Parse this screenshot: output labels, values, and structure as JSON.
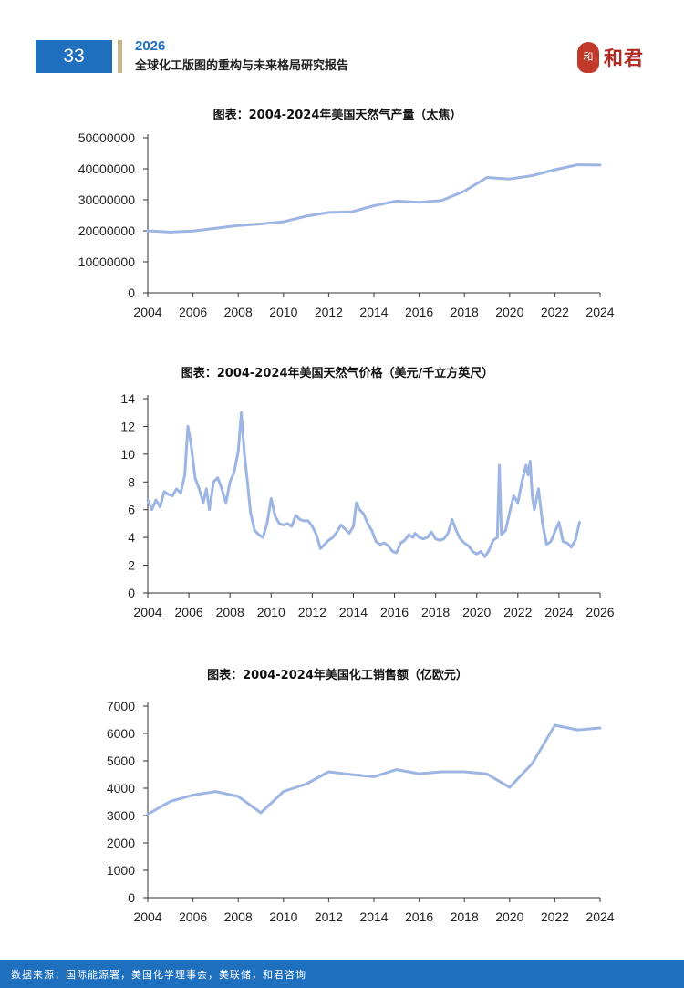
{
  "header": {
    "page_number": "33",
    "year": "2026",
    "title": "全球化工版图的重构与未来格局研究报告",
    "logo_text": "和君",
    "logo_seal": "和"
  },
  "chart_data": [
    {
      "type": "line",
      "title": "图表：2004-2024年美国天然气产量（太焦）",
      "xlabel": "",
      "ylabel": "",
      "xlim": [
        2004,
        2024
      ],
      "ylim": [
        0,
        50000000
      ],
      "x_ticks": [
        "2004",
        "2006",
        "2008",
        "2010",
        "2012",
        "2014",
        "2016",
        "2018",
        "2020",
        "2022",
        "2024"
      ],
      "y_ticks": [
        "0",
        "10000000",
        "20000000",
        "30000000",
        "40000000",
        "50000000"
      ],
      "series": [
        {
          "name": "天然气产量",
          "x": [
            2004,
            2005,
            2006,
            2007,
            2008,
            2009,
            2010,
            2011,
            2012,
            2013,
            2014,
            2015,
            2016,
            2017,
            2018,
            2019,
            2020,
            2021,
            2022,
            2023,
            2024
          ],
          "values": [
            20000000,
            19600000,
            19900000,
            20800000,
            21700000,
            22200000,
            22900000,
            24700000,
            25900000,
            26100000,
            28100000,
            29600000,
            29200000,
            29800000,
            32800000,
            37200000,
            36700000,
            37800000,
            39700000,
            41300000,
            41200000
          ]
        }
      ]
    },
    {
      "type": "line",
      "title": "图表：2004-2024年美国天然气价格（美元/千立方英尺）",
      "xlabel": "",
      "ylabel": "",
      "xlim": [
        2004,
        2026
      ],
      "ylim": [
        0,
        14
      ],
      "x_ticks": [
        "2004",
        "2006",
        "2008",
        "2010",
        "2012",
        "2014",
        "2016",
        "2018",
        "2020",
        "2022",
        "2024",
        "2026"
      ],
      "y_ticks": [
        "0",
        "2",
        "4",
        "6",
        "8",
        "10",
        "12",
        "14"
      ],
      "series": [
        {
          "name": "天然气价格",
          "x": [
            2004.0,
            2004.2,
            2004.4,
            2004.6,
            2004.8,
            2005.0,
            2005.2,
            2005.4,
            2005.6,
            2005.8,
            2005.95,
            2006.1,
            2006.3,
            2006.5,
            2006.7,
            2006.85,
            2007.0,
            2007.2,
            2007.4,
            2007.6,
            2007.8,
            2008.0,
            2008.2,
            2008.4,
            2008.55,
            2008.7,
            2008.85,
            2009.0,
            2009.2,
            2009.4,
            2009.6,
            2009.8,
            2010.0,
            2010.2,
            2010.4,
            2010.6,
            2010.8,
            2011.0,
            2011.2,
            2011.4,
            2011.6,
            2011.8,
            2012.0,
            2012.2,
            2012.4,
            2012.6,
            2012.8,
            2013.0,
            2013.2,
            2013.4,
            2013.6,
            2013.8,
            2014.0,
            2014.15,
            2014.3,
            2014.5,
            2014.7,
            2014.9,
            2015.1,
            2015.3,
            2015.5,
            2015.7,
            2015.9,
            2016.1,
            2016.3,
            2016.5,
            2016.7,
            2016.9,
            2017.0,
            2017.2,
            2017.4,
            2017.6,
            2017.8,
            2018.0,
            2018.2,
            2018.4,
            2018.6,
            2018.8,
            2019.0,
            2019.2,
            2019.4,
            2019.6,
            2019.8,
            2020.0,
            2020.2,
            2020.4,
            2020.6,
            2020.8,
            2021.0,
            2021.1,
            2021.2,
            2021.4,
            2021.6,
            2021.8,
            2022.0,
            2022.2,
            2022.4,
            2022.5,
            2022.6,
            2022.7,
            2022.8,
            2023.0,
            2023.2,
            2023.4,
            2023.6,
            2023.8,
            2024.0,
            2024.2,
            2024.4,
            2024.6,
            2024.8,
            2025.0
          ],
          "values": [
            6.7,
            6.0,
            6.7,
            6.2,
            7.3,
            7.1,
            7.0,
            7.5,
            7.2,
            8.5,
            12.0,
            10.8,
            8.3,
            7.5,
            6.5,
            7.5,
            6.0,
            8.0,
            8.3,
            7.5,
            6.5,
            8.0,
            8.7,
            10.2,
            13.0,
            10.0,
            8.0,
            5.8,
            4.5,
            4.2,
            4.0,
            5.0,
            6.8,
            5.5,
            5.0,
            4.9,
            5.0,
            4.8,
            5.6,
            5.3,
            5.2,
            5.2,
            4.8,
            4.2,
            3.2,
            3.5,
            3.8,
            4.0,
            4.4,
            4.9,
            4.6,
            4.3,
            4.8,
            6.5,
            6.0,
            5.7,
            5.0,
            4.5,
            3.7,
            3.5,
            3.6,
            3.4,
            3.0,
            2.9,
            3.6,
            3.8,
            4.2,
            4.0,
            4.3,
            4.0,
            3.9,
            4.0,
            4.4,
            3.9,
            3.8,
            3.9,
            4.3,
            5.3,
            4.5,
            3.9,
            3.6,
            3.4,
            3.0,
            2.8,
            3.0,
            2.6,
            3.1,
            3.8,
            4.0,
            9.2,
            4.2,
            4.5,
            5.8,
            7.0,
            6.5,
            8.0,
            9.2,
            8.5,
            9.5,
            7.0,
            6.0,
            7.5,
            5.0,
            3.5,
            3.7,
            4.4,
            5.1,
            3.7,
            3.6,
            3.3,
            3.8,
            5.1
          ]
        }
      ]
    },
    {
      "type": "line",
      "title": "图表：2004-2024年美国化工销售额（亿欧元）",
      "xlabel": "",
      "ylabel": "",
      "xlim": [
        2004,
        2024
      ],
      "ylim": [
        0,
        7000
      ],
      "x_ticks": [
        "2004",
        "2006",
        "2008",
        "2010",
        "2012",
        "2014",
        "2016",
        "2018",
        "2020",
        "2022",
        "2024"
      ],
      "y_ticks": [
        "0",
        "1000",
        "2000",
        "3000",
        "4000",
        "5000",
        "6000",
        "7000"
      ],
      "series": [
        {
          "name": "化工销售额",
          "x": [
            2004,
            2005,
            2006,
            2007,
            2008,
            2009,
            2010,
            2011,
            2012,
            2013,
            2014,
            2015,
            2016,
            2017,
            2018,
            2019,
            2020,
            2021,
            2022,
            2023,
            2024
          ],
          "values": [
            3050,
            3520,
            3750,
            3880,
            3700,
            3100,
            3880,
            4150,
            4600,
            4500,
            4420,
            4680,
            4530,
            4600,
            4600,
            4520,
            4030,
            4900,
            6300,
            6130,
            6200
          ]
        }
      ]
    }
  ],
  "styles": {
    "line_color": "#9db5e2",
    "axis_color": "#333333",
    "accent_blue": "#1f6fbf",
    "accent_gold": "#c9b58a",
    "logo_red": "#b02a22"
  },
  "footer": {
    "source": "数据来源：国际能源署，美国化学理事会，美联储，和君咨询"
  }
}
